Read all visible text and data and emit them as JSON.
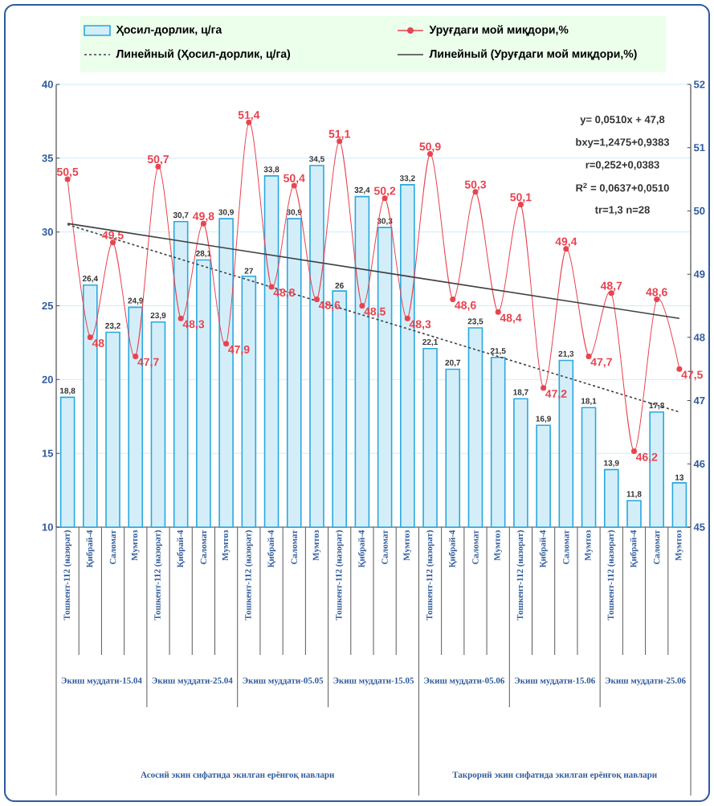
{
  "chart_data": {
    "type": "bar",
    "categories": [
      "Тошкент-112 (назорат)",
      "Қибрай-4",
      "Саломат",
      "Мумтоз",
      "Тошкент-112 (назорат)",
      "Қибрай-4",
      "Саломат",
      "Мумтоз",
      "Тошкент-112 (назорат)",
      "Қибрай-4",
      "Саломат",
      "Мумтоз",
      "Тошкент-112 (назорат)",
      "Қибрай-4",
      "Саломат",
      "Мумтоз",
      "Тошкент-112 (назорат)",
      "Қибрай-4",
      "Саломат",
      "Мумтоз",
      "Тошкент-112 (назорат)",
      "Қибрай-4",
      "Саломат",
      "Мумтоз",
      "Тошкент-112 (назорат)",
      "Қибрай-4",
      "Саломат",
      "Мумтоз"
    ],
    "series": [
      {
        "name": "Ҳосил-дорлик, ц/га",
        "color": "#29a8e0",
        "values": [
          18.8,
          26.4,
          23.2,
          24.9,
          23.9,
          30.7,
          28.1,
          30.9,
          27,
          33.8,
          30.9,
          34.5,
          26,
          32.4,
          30.3,
          33.2,
          22.1,
          20.7,
          23.5,
          21.5,
          18.7,
          16.9,
          21.3,
          18.1,
          13.9,
          11.8,
          17.8,
          13
        ],
        "value_labels": [
          "18,8",
          "26,4",
          "23,2",
          "24,9",
          "23,9",
          "30,7",
          "28,1",
          "30,9",
          "27",
          "33,8",
          "30,9",
          "34,5",
          "26",
          "32,4",
          "30,3",
          "33,2",
          "22,1",
          "20,7",
          "23,5",
          "21,5",
          "18,7",
          "16,9",
          "21,3",
          "18,1",
          "13,9",
          "11,8",
          "17,8",
          "13"
        ]
      },
      {
        "name": "Уруғдаги мой миқдори,%",
        "type": "line",
        "axis": "y2",
        "color": "#e8434f",
        "marker": "circle",
        "values": [
          50.5,
          48,
          49.5,
          47.7,
          50.7,
          48.3,
          49.8,
          47.9,
          51.4,
          48.8,
          50.4,
          48.6,
          51.1,
          48.5,
          50.2,
          48.3,
          50.9,
          48.6,
          50.3,
          48.4,
          50.1,
          47.2,
          49.4,
          47.7,
          48.7,
          46.2,
          48.6,
          47.5
        ],
        "value_labels": [
          "50,5",
          "48",
          "49,5",
          "47,7",
          "50,7",
          "48,3",
          "49,8",
          "47,9",
          "51,4",
          "48,8",
          "50,4",
          "48,6",
          "51,1",
          "48,5",
          "50,2",
          "48,3",
          "50,9",
          "48,6",
          "50,3",
          "48,4",
          "50,1",
          "47,2",
          "49,4",
          "47,7",
          "48,7",
          "46,2",
          "48,6",
          "47,5"
        ]
      },
      {
        "name": "Линейный (Ҳосил-дорлик, ц/га)",
        "type": "line",
        "color": "#404040",
        "line_style": "dashed",
        "values": [
          30.5,
          null,
          null,
          null,
          null,
          null,
          null,
          null,
          null,
          null,
          null,
          null,
          null,
          null,
          null,
          null,
          null,
          null,
          null,
          null,
          null,
          null,
          null,
          null,
          null,
          null,
          null,
          17.8
        ]
      },
      {
        "name": "Линейный (Уруғдаги мой миқдори,%)",
        "type": "line",
        "axis": "y2",
        "color": "#404040",
        "line_style": "solid",
        "values": [
          49.8,
          null,
          null,
          null,
          null,
          null,
          null,
          null,
          null,
          null,
          null,
          null,
          null,
          null,
          null,
          null,
          null,
          null,
          null,
          null,
          null,
          null,
          null,
          null,
          null,
          null,
          null,
          48.3
        ]
      }
    ],
    "ylim": [
      10,
      40
    ],
    "yticks": [
      10,
      15,
      20,
      25,
      30,
      35,
      40
    ],
    "y2lim": [
      45,
      52
    ],
    "y2ticks": [
      45,
      46,
      47,
      48,
      49,
      50,
      51,
      52
    ],
    "grid": "y",
    "legend": "top",
    "annotations": [
      "Экиш муддати-15.04",
      "Экиш муддати-25.04",
      "Экиш муддати-05.05",
      "Экиш муддати-15.05",
      "Экиш муддати-05.06",
      "Экиш муддати-15.06",
      "Экиш муддати-25.06",
      "Асосий экин сифатида экилган ерёнғоқ навлари",
      "Такрорий экин сифатида экилган ерёнғоқ навлари",
      "y= 0,0510x + 47,8",
      "bxy=1,2475+0,9383",
      "r=0,252+0,0383",
      "R$^{2}$ = 0,0637+0,0510",
      "tr=1,3 n=28"
    ]
  }
}
